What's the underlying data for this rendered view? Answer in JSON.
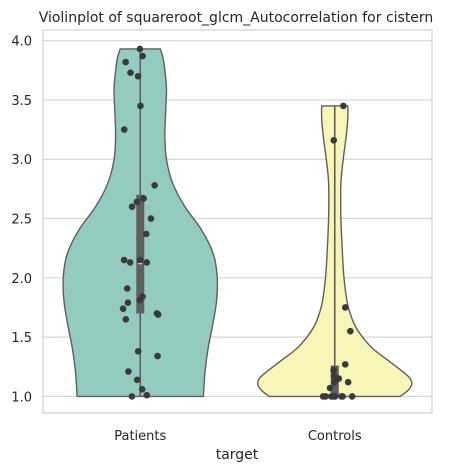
{
  "chart_data": {
    "type": "violin",
    "title": "Violinplot of squareroot_glcm_Autocorrelation for cistern",
    "xlabel": "target",
    "ylabel": "",
    "ylim": [
      0.86,
      4.09
    ],
    "yticks": [
      "1.0",
      "1.5",
      "2.0",
      "2.5",
      "3.0",
      "3.5",
      "4.0"
    ],
    "grid": true,
    "categories": [
      "Patients",
      "Controls"
    ],
    "series": [
      {
        "category": "Patients",
        "color": "#93cbc0",
        "median": 2.13,
        "q1": 1.7,
        "q3": 2.7,
        "density": [
          [
            1.0,
            0.82
          ],
          [
            1.2,
            0.84
          ],
          [
            1.4,
            0.88
          ],
          [
            1.6,
            0.94
          ],
          [
            1.8,
            0.99
          ],
          [
            2.0,
            1.0
          ],
          [
            2.2,
            0.95
          ],
          [
            2.4,
            0.8
          ],
          [
            2.6,
            0.58
          ],
          [
            2.8,
            0.42
          ],
          [
            3.0,
            0.34
          ],
          [
            3.2,
            0.32
          ],
          [
            3.4,
            0.33
          ],
          [
            3.6,
            0.34
          ],
          [
            3.8,
            0.31
          ],
          [
            3.87,
            0.29
          ],
          [
            3.93,
            0.26
          ]
        ],
        "points": [
          3.93,
          3.87,
          3.82,
          3.73,
          3.7,
          3.45,
          3.25,
          2.78,
          2.67,
          2.64,
          2.6,
          2.5,
          2.37,
          2.15,
          2.15,
          2.13,
          2.13,
          1.91,
          1.84,
          1.81,
          1.79,
          1.74,
          1.7,
          1.69,
          1.65,
          1.38,
          1.34,
          1.21,
          1.14,
          1.06,
          1.01,
          1.0
        ]
      },
      {
        "category": "Controls",
        "color": "#f8f6b7",
        "median": 1.13,
        "q1": 1.0,
        "q3": 1.26,
        "density": [
          [
            1.0,
            0.85
          ],
          [
            1.05,
            0.95
          ],
          [
            1.1,
            1.0
          ],
          [
            1.15,
            0.98
          ],
          [
            1.2,
            0.9
          ],
          [
            1.3,
            0.7
          ],
          [
            1.4,
            0.5
          ],
          [
            1.5,
            0.36
          ],
          [
            1.6,
            0.26
          ],
          [
            1.7,
            0.2
          ],
          [
            1.8,
            0.16
          ],
          [
            2.0,
            0.12
          ],
          [
            2.2,
            0.1
          ],
          [
            2.5,
            0.08
          ],
          [
            2.8,
            0.08
          ],
          [
            3.0,
            0.11
          ],
          [
            3.2,
            0.15
          ],
          [
            3.35,
            0.17
          ],
          [
            3.45,
            0.17
          ]
        ],
        "points": [
          3.45,
          3.16,
          1.75,
          1.55,
          1.27,
          1.22,
          1.17,
          1.15,
          1.12,
          1.12,
          1.07,
          1.0,
          1.0,
          1.0,
          1.0,
          1.0,
          1.0,
          1.0,
          1.0,
          1.0
        ]
      }
    ]
  }
}
